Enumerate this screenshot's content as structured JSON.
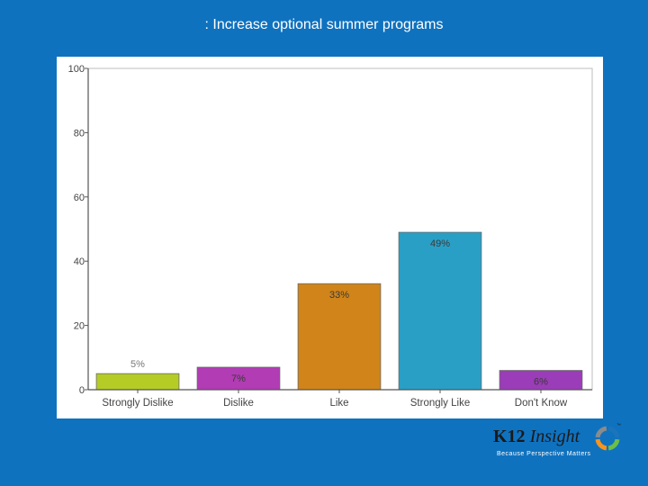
{
  "slide": {
    "title": ": Increase optional summer programs"
  },
  "logo": {
    "brand_k12": "K12",
    "brand_insight": "Insight",
    "trademark": "™",
    "tagline": "Because Perspective Matters",
    "ring_colors": [
      "#1B75BB",
      "#6CBE45",
      "#F7941D",
      "#8B8B8B"
    ]
  },
  "chart_data": {
    "type": "bar",
    "categories": [
      "Strongly Dislike",
      "Dislike",
      "Like",
      "Strongly Like",
      "Don't Know"
    ],
    "values": [
      5,
      7,
      33,
      49,
      6
    ],
    "data_labels": [
      "5%",
      "7%",
      "33%",
      "49%",
      "6%"
    ],
    "colors": [
      "#B5CC26",
      "#B23CB4",
      "#D08419",
      "#2A9FC6",
      "#9B3CB8"
    ],
    "title": "",
    "xlabel": "",
    "ylabel": "",
    "ylim": [
      0,
      100
    ],
    "yticks": [
      0,
      20,
      40,
      60,
      80,
      100
    ],
    "grid": false,
    "legend": "none"
  }
}
